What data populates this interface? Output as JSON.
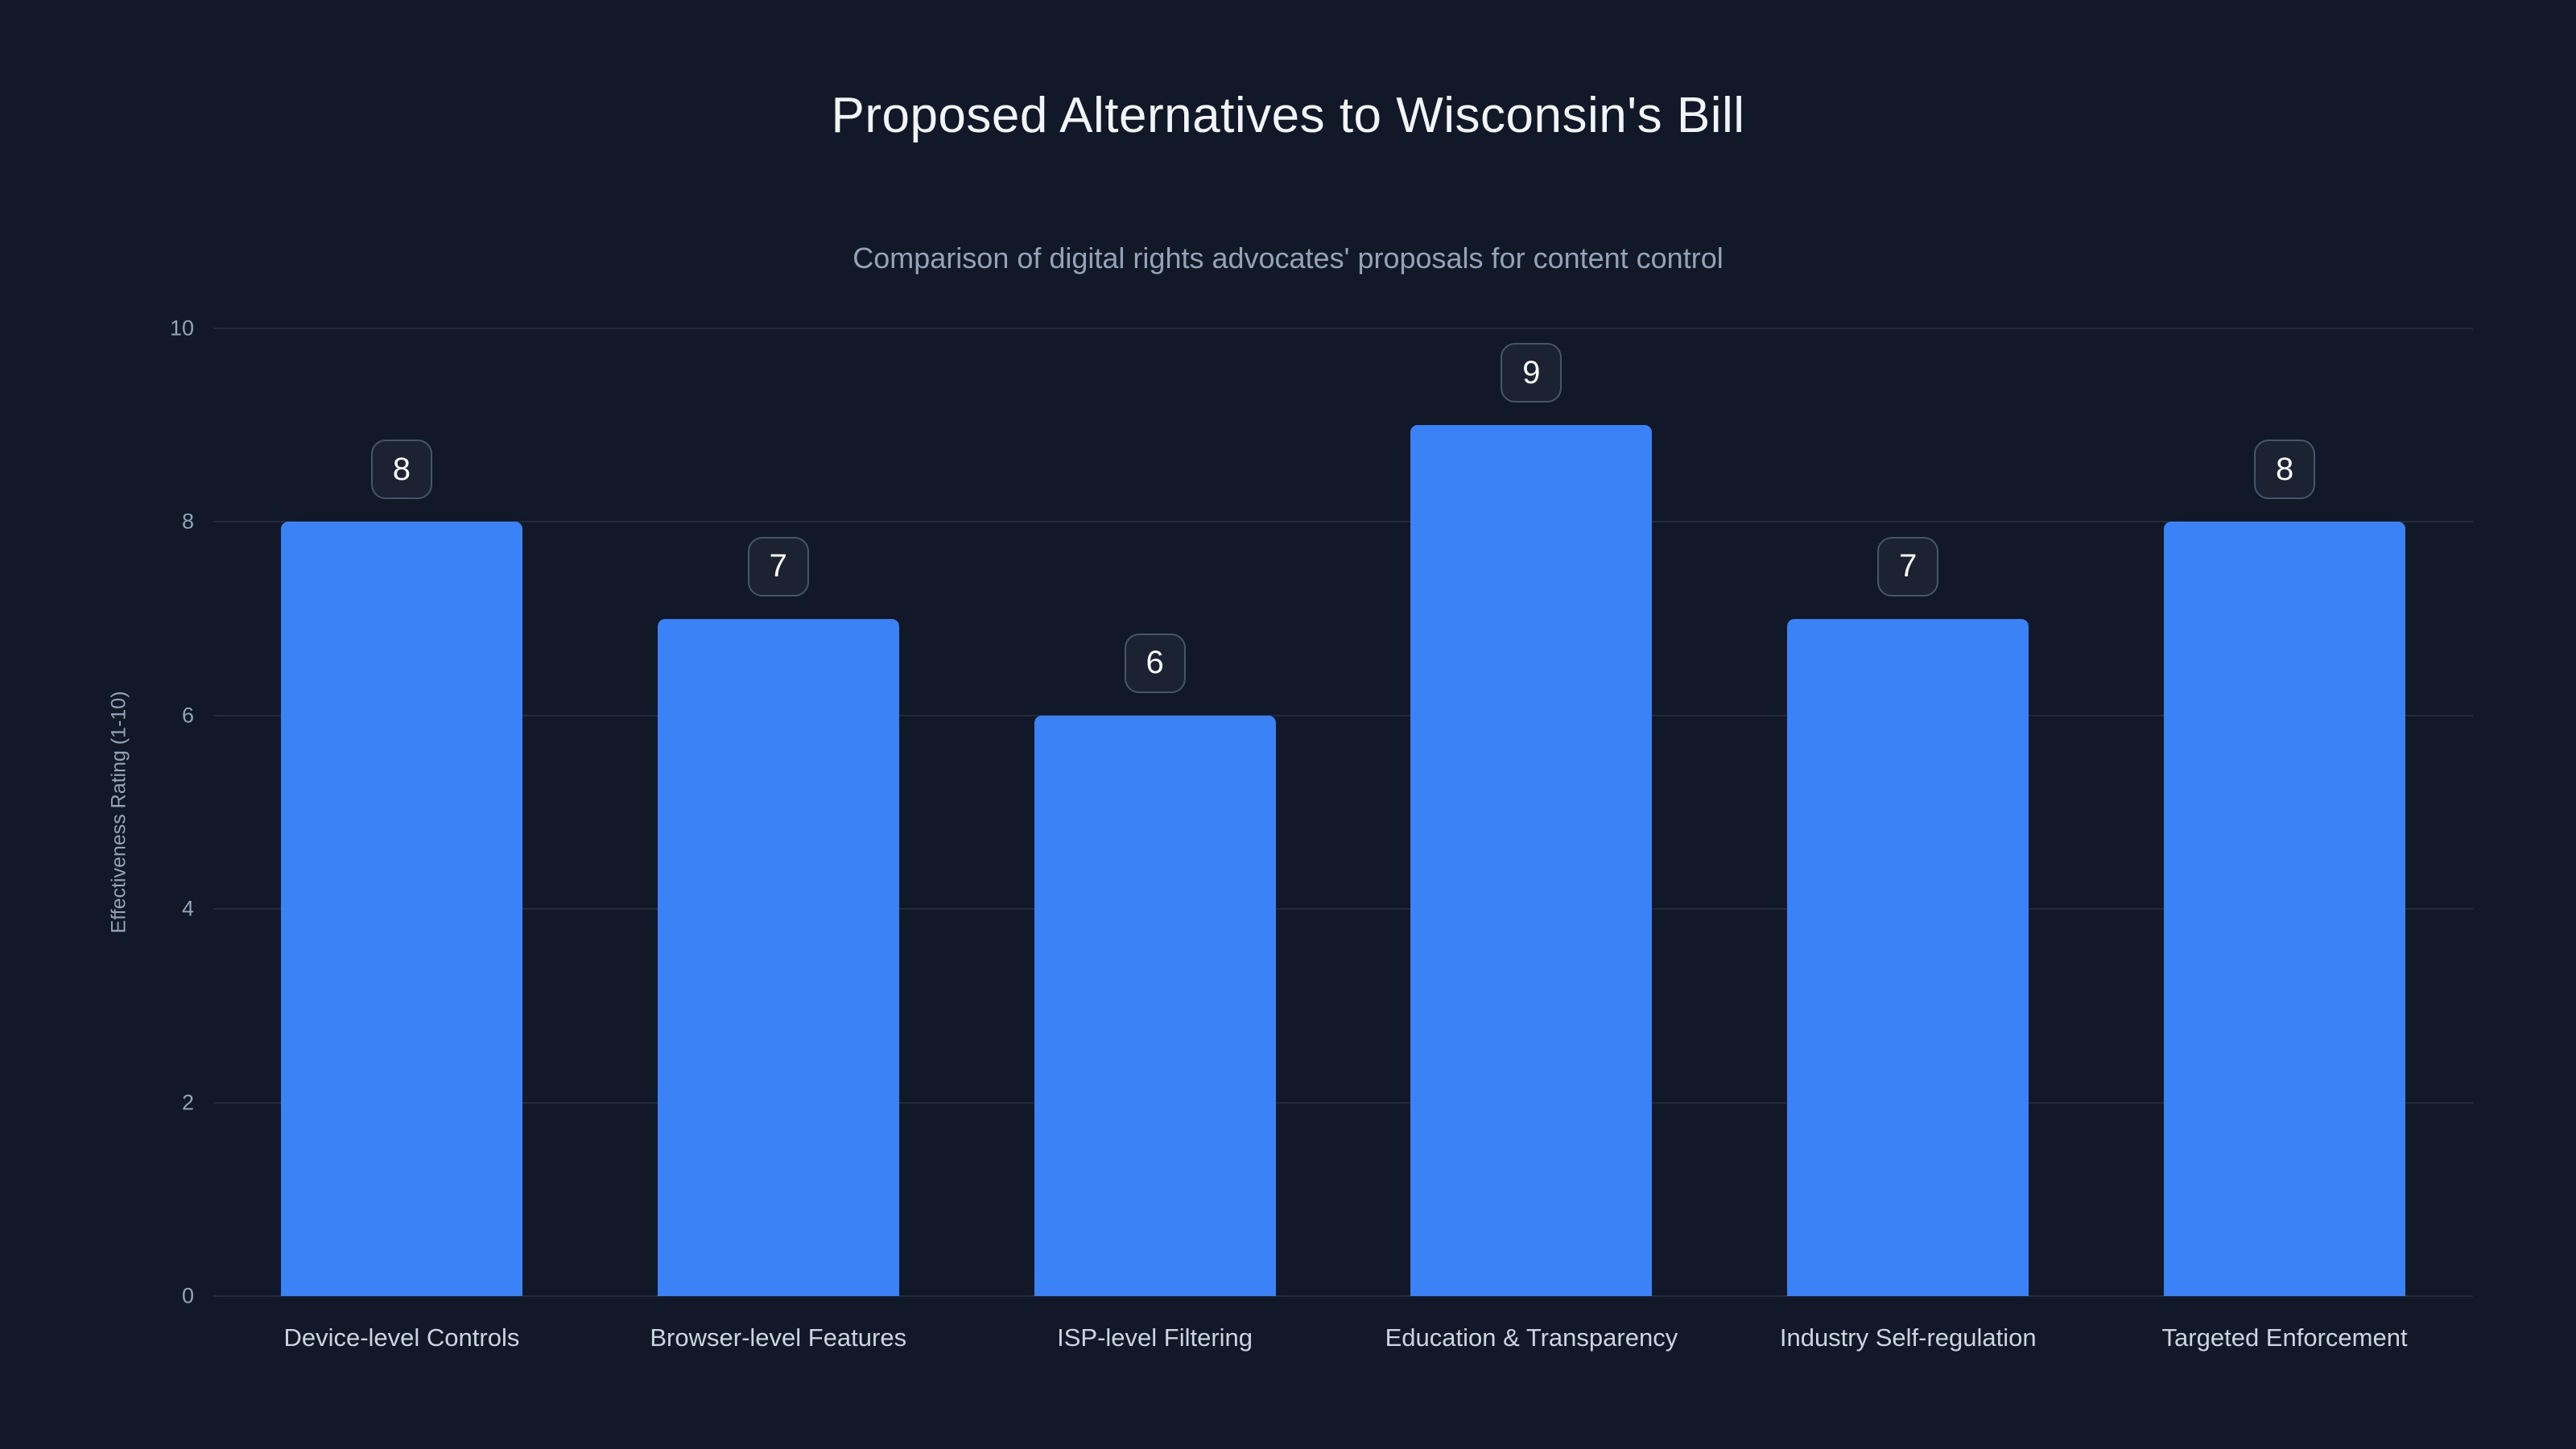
{
  "chart_data": {
    "type": "bar",
    "title": "Proposed Alternatives to Wisconsin's Bill",
    "subtitle": "Comparison of digital rights advocates' proposals for content control",
    "categories": [
      "Device-level Controls",
      "Browser-level Features",
      "ISP-level Filtering",
      "Education & Transparency",
      "Industry Self-regulation",
      "Targeted Enforcement"
    ],
    "values": [
      8,
      7,
      6,
      9,
      7,
      8
    ],
    "xlabel": "",
    "ylabel": "Effectiveness Rating (1-10)",
    "ylim": [
      0,
      10
    ],
    "yticks": [
      0,
      2,
      4,
      6,
      8,
      10
    ],
    "grid": true,
    "legend": false,
    "bar_value_labels": [
      "8",
      "7",
      "6",
      "9",
      "7",
      "8"
    ]
  },
  "colors": {
    "background": "#111827",
    "bar": "#3b82f6",
    "title": "#f1f5f9",
    "subtitle": "#94a3b8",
    "tick": "#94a3b8",
    "xlabel": "#cbd5e1",
    "grid": "rgba(148,163,184,0.14)",
    "badge_border": "#475569",
    "badge_bg": "#1b2333",
    "badge_text": "#f8fafc"
  }
}
